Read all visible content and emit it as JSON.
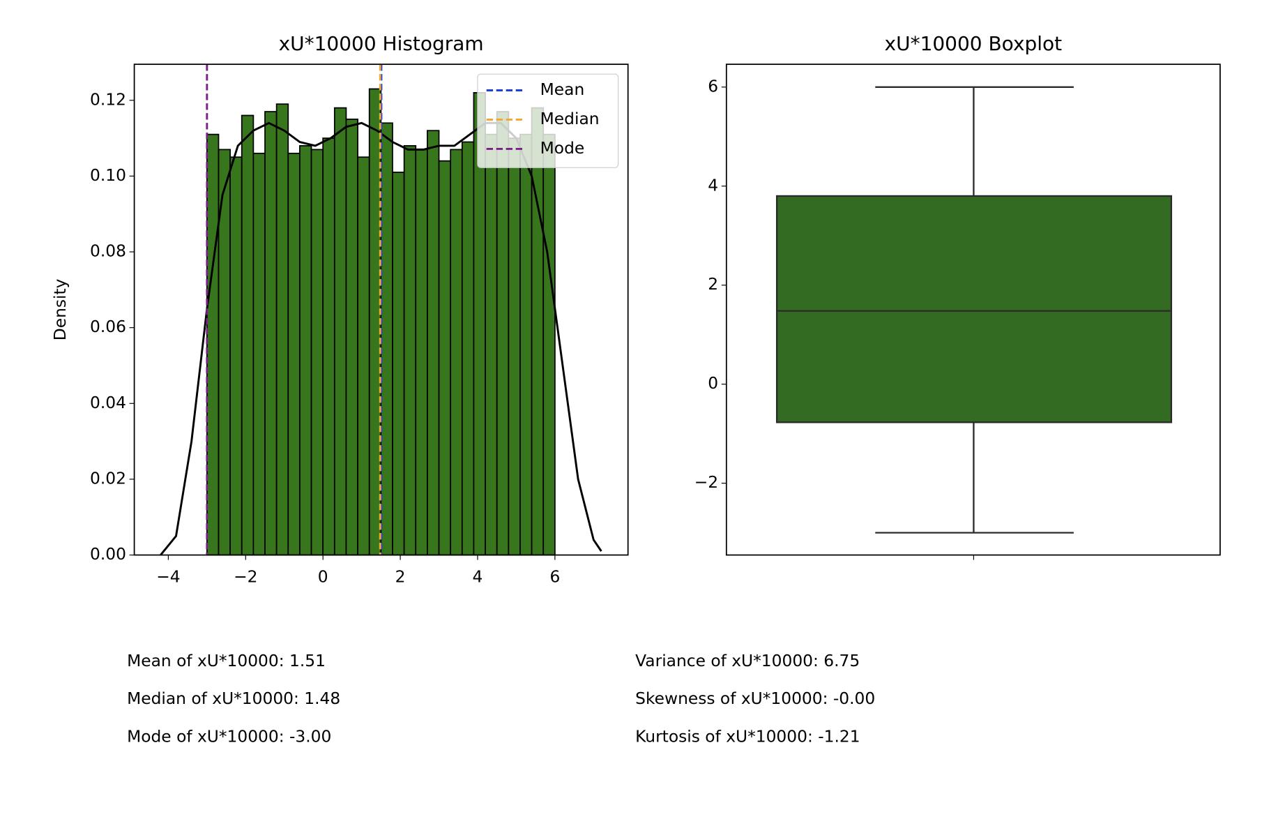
{
  "chart_data": [
    {
      "type": "histogram",
      "title": "xU*10000 Histogram",
      "ylabel": "Density",
      "color": "#38761d",
      "bins": [
        -3,
        -2.7,
        -2.4,
        -2.1,
        -1.8,
        -1.5,
        -1.2,
        -0.9,
        -0.6,
        -0.3,
        0,
        0.3,
        0.6,
        0.9,
        1.2,
        1.5,
        1.8,
        2.1,
        2.4,
        2.7,
        3,
        3.3,
        3.6,
        3.9,
        4.2,
        4.5,
        4.8,
        5.1,
        5.4,
        5.7,
        6
      ],
      "values": [
        0.111,
        0.107,
        0.105,
        0.116,
        0.106,
        0.117,
        0.119,
        0.106,
        0.108,
        0.107,
        0.11,
        0.118,
        0.115,
        0.105,
        0.123,
        0.114,
        0.101,
        0.108,
        0.107,
        0.112,
        0.104,
        0.107,
        0.109,
        0.122,
        0.111,
        0.117,
        0.11,
        0.111,
        0.118,
        0.111
      ],
      "kde_x": [
        -4.2,
        -3.8,
        -3.4,
        -3,
        -2.6,
        -2.2,
        -1.8,
        -1.4,
        -1,
        -0.6,
        -0.2,
        0.2,
        0.6,
        1,
        1.4,
        1.8,
        2.2,
        2.6,
        3,
        3.4,
        3.8,
        4.2,
        4.6,
        5,
        5.4,
        5.8,
        6.2,
        6.6,
        7,
        7.2
      ],
      "kde_y": [
        0,
        0.005,
        0.03,
        0.065,
        0.095,
        0.108,
        0.112,
        0.114,
        0.112,
        0.109,
        0.108,
        0.11,
        0.113,
        0.114,
        0.112,
        0.109,
        0.107,
        0.107,
        0.108,
        0.108,
        0.111,
        0.114,
        0.114,
        0.11,
        0.1,
        0.08,
        0.05,
        0.02,
        0.004,
        0.001
      ],
      "reference_lines": [
        {
          "name": "Mean",
          "color": "#1f3fdc",
          "value": 1.51
        },
        {
          "name": "Median",
          "color": "#f0a830",
          "value": 1.48
        },
        {
          "name": "Mode",
          "color": "#7b1f8a",
          "value": -3
        }
      ],
      "xlim": [
        -4.88,
        7.89
      ],
      "ylim": [
        0,
        0.1295
      ],
      "xticks": [
        {
          "value": -4,
          "label": "−4"
        },
        {
          "value": -2,
          "label": "−2"
        },
        0,
        2,
        4,
        6
      ],
      "yticks": [
        {
          "value": 0,
          "label": "0.00"
        },
        {
          "value": 0.02,
          "label": "0.02"
        },
        {
          "value": 0.04,
          "label": "0.04"
        },
        {
          "value": 0.06,
          "label": "0.06"
        },
        {
          "value": 0.08,
          "label": "0.08"
        },
        {
          "value": 0.1,
          "label": "0.10"
        },
        {
          "value": 0.12,
          "label": "0.12"
        }
      ],
      "legend": "upper right"
    },
    {
      "type": "box",
      "title": "xU*10000 Boxplot",
      "color": "#346b22",
      "whisker_low": -3,
      "q1": -0.77,
      "median": 1.48,
      "q3": 3.8,
      "whisker_high": 6,
      "ylim": [
        -3.45,
        6.46
      ],
      "yticks": [
        {
          "value": -2,
          "label": "−2"
        },
        0,
        2,
        4,
        6
      ]
    }
  ],
  "stats": {
    "left": [
      "Mean of xU*10000: 1.51",
      "Median of xU*10000: 1.48",
      "Mode of xU*10000: -3.00"
    ],
    "right": [
      "Variance of xU*10000: 6.75",
      "Skewness of xU*10000: -0.00",
      "Kurtosis of xU*10000: -1.21"
    ]
  }
}
